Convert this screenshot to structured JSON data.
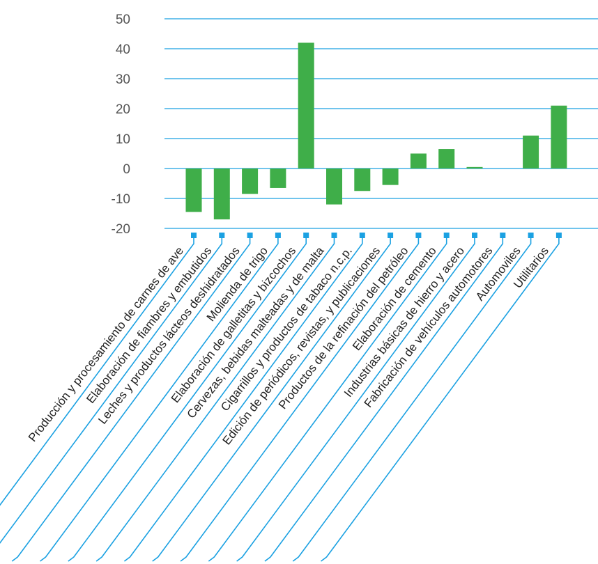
{
  "chart_data": {
    "type": "bar",
    "categories": [
      "Producción y procesamiento de carnes de ave",
      "Elaboración de fiambres y embutidos",
      "Leches y productos lácteos deshidratados",
      "Molienda de trigo",
      "Elaboración de galletitas y bizcochos",
      "Cervezas, bebidas malteadas y de malta",
      "Cigarrillos y productos de tabaco n.c.p.",
      "Edición de periódicos, revistas, y publicaciones",
      "Productos de la refinación del petróleo",
      "Elaboración de cemento",
      "Industrias básicas de hierro y acero",
      "Fabricación de vehículos automotores",
      "Automoviles",
      "Utilitarios"
    ],
    "values": [
      -14.5,
      -17,
      -8.5,
      -6.5,
      42,
      -12,
      -7.5,
      -5.5,
      5,
      6.5,
      0.5,
      0,
      11,
      21
    ],
    "ylim": [
      -20,
      50
    ],
    "yticks": [
      "50",
      "40",
      "30",
      "20",
      "10",
      "0",
      "-10",
      "-20"
    ],
    "title": "",
    "xlabel": "",
    "ylabel": "",
    "grid": true,
    "colors": {
      "bar": "#3fae49",
      "grid": "#1ba1e2",
      "tick_text": "#555555",
      "label_text": "#222222"
    }
  }
}
